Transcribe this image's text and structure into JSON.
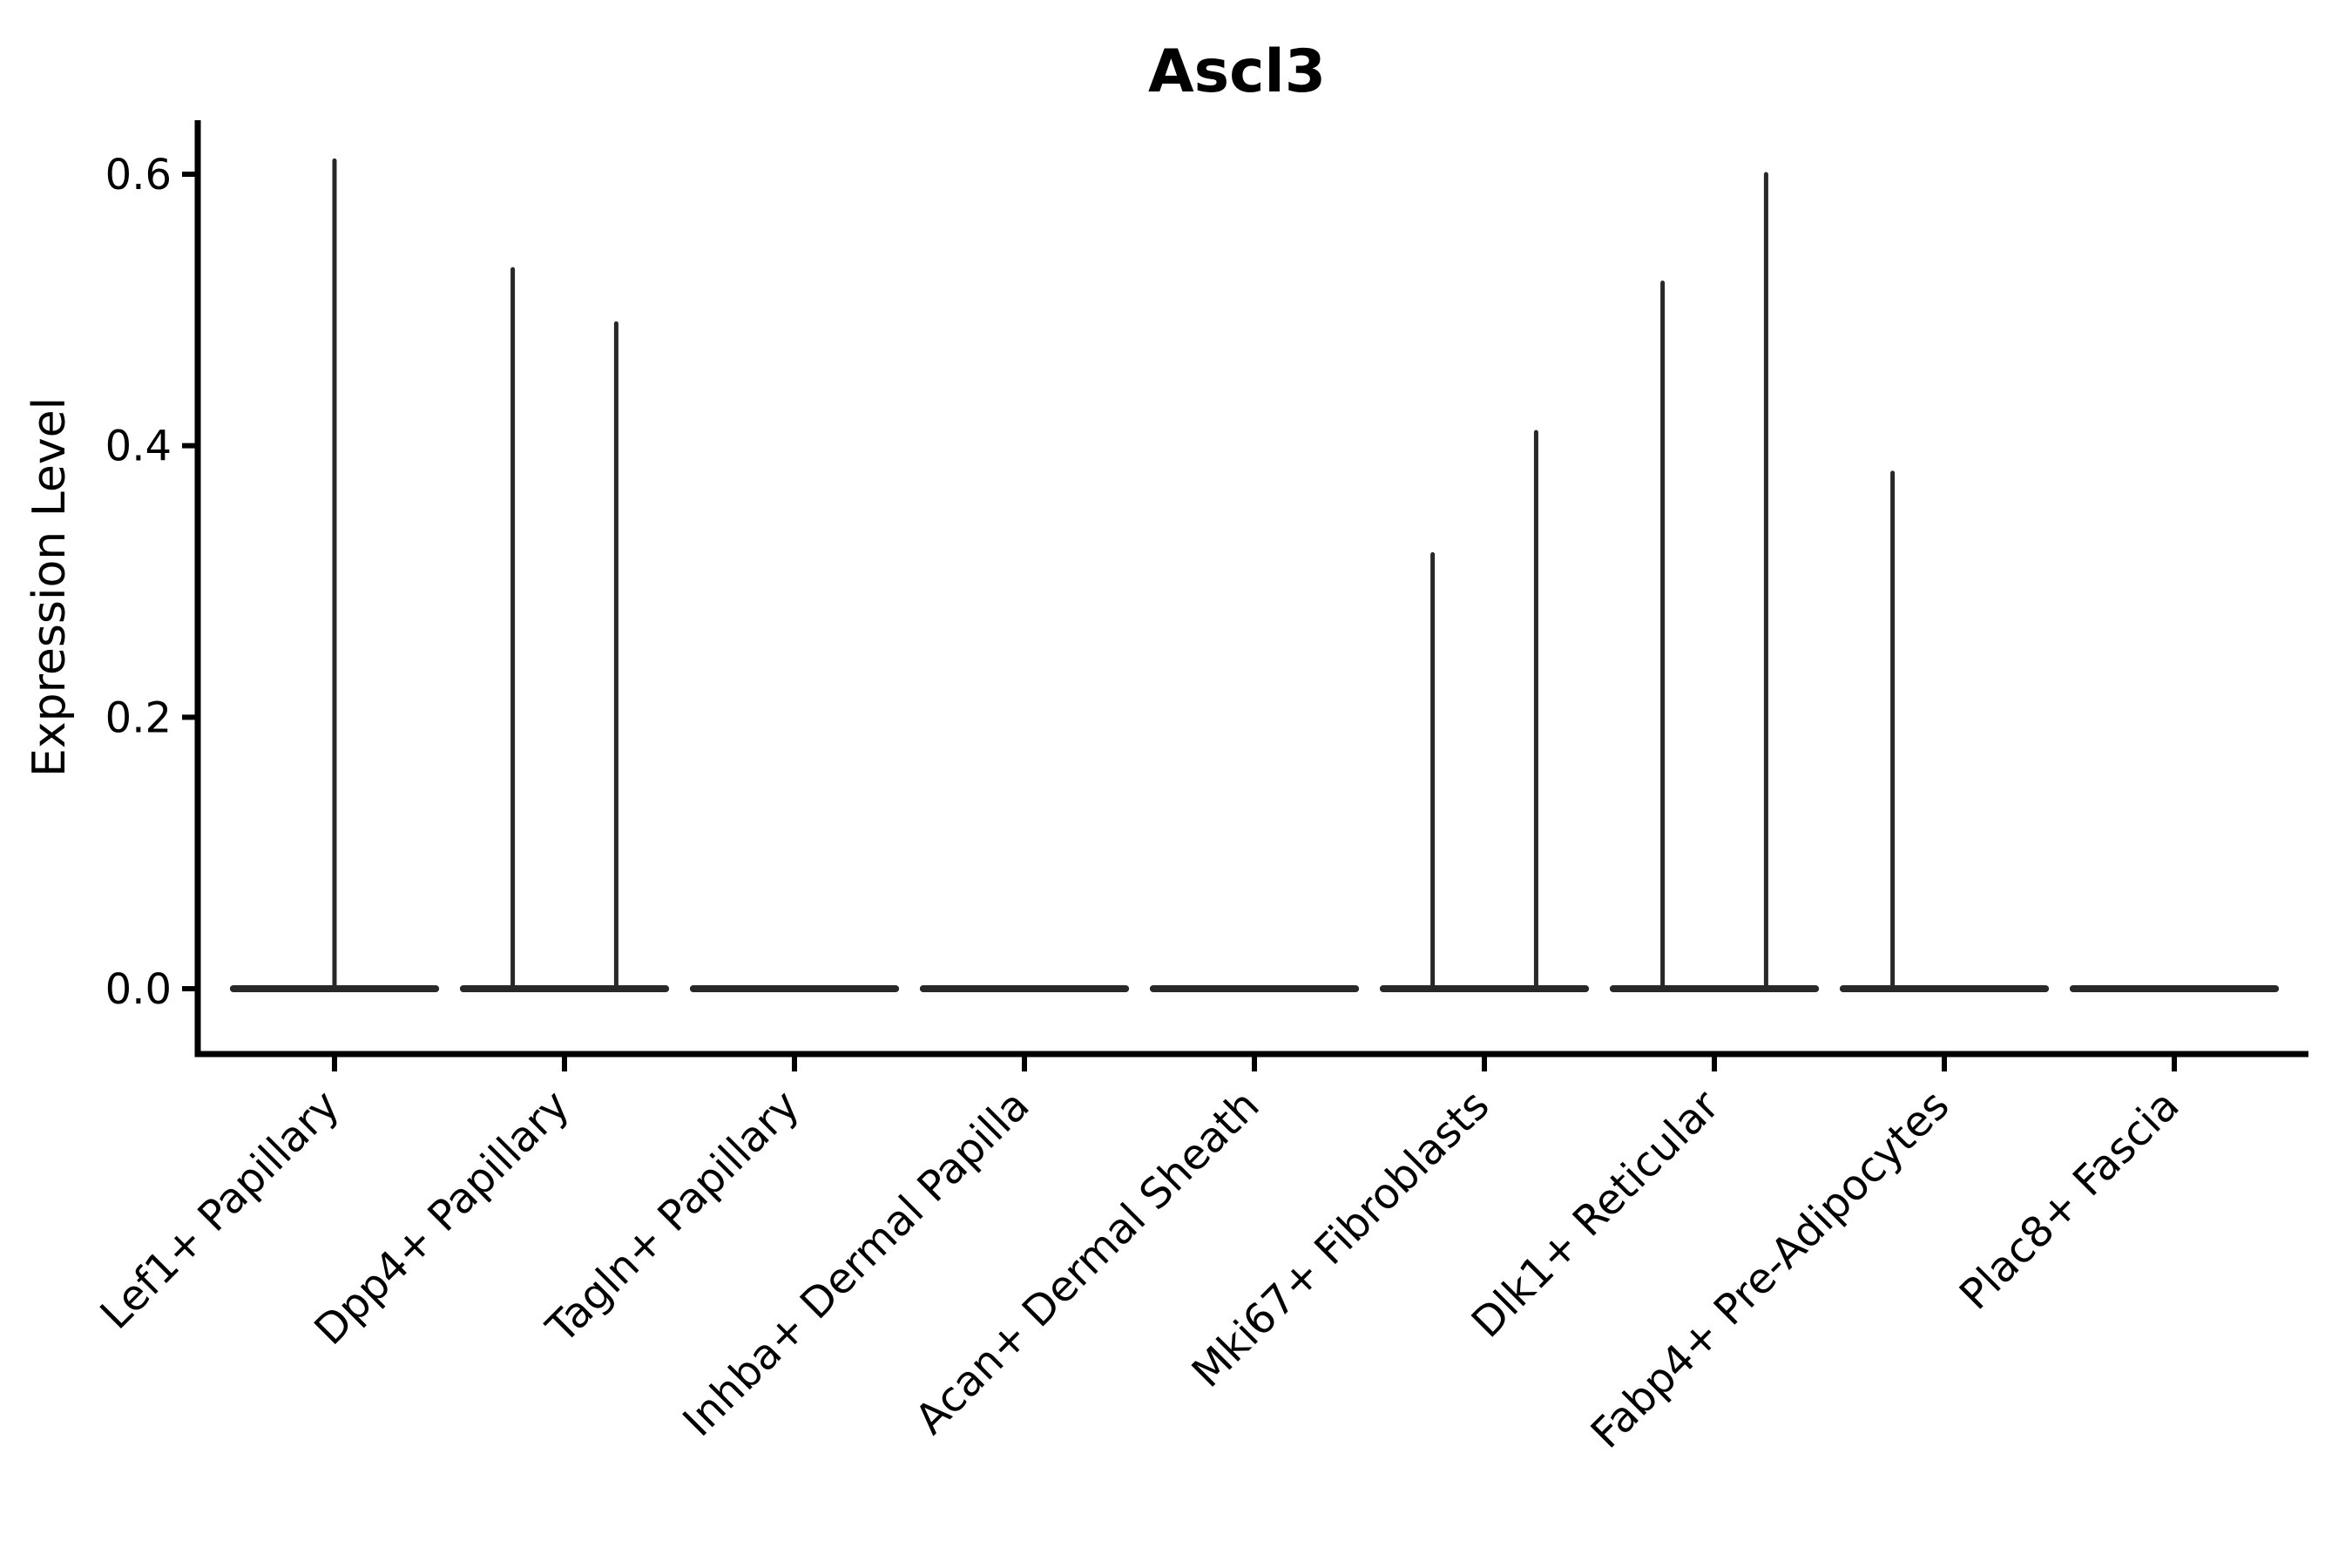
{
  "title": "Ascl3",
  "chart_data": {
    "type": "violin",
    "title": "Ascl3",
    "xlabel": "",
    "ylabel": "Expression Level",
    "ylim": [
      0,
      0.64
    ],
    "yticks": [
      0.0,
      0.2,
      0.4,
      0.6
    ],
    "ytick_labels": [
      "0.0",
      "0.2",
      "0.4",
      "0.6"
    ],
    "grid": false,
    "legend_position": "none",
    "tick_label_rotation": 45,
    "categories": [
      "Lef1+ Papillary",
      "Dpp4+ Papillary",
      "Tagln+ Papillary",
      "Inhba+ Dermal Papilla",
      "Acan+ Dermal Sheath",
      "Mki67+ Fibroblasts",
      "Dlk1+ Reticular",
      "Fabp4+ Pre-Adipocytes",
      "Plac8+ Fascia"
    ],
    "series": [
      {
        "name": "Lef1+ Papillary",
        "baseline_value": 0.0,
        "spikes": [
          {
            "offset_frac": 0.0,
            "value": 0.61
          }
        ]
      },
      {
        "name": "Dpp4+ Papillary",
        "baseline_value": 0.0,
        "spikes": [
          {
            "offset_frac": -0.225,
            "value": 0.53
          },
          {
            "offset_frac": 0.225,
            "value": 0.49
          }
        ]
      },
      {
        "name": "Tagln+ Papillary",
        "baseline_value": 0.0,
        "spikes": []
      },
      {
        "name": "Inhba+ Dermal Papilla",
        "baseline_value": 0.0,
        "spikes": []
      },
      {
        "name": "Acan+ Dermal Sheath",
        "baseline_value": 0.0,
        "spikes": []
      },
      {
        "name": "Mki67+ Fibroblasts",
        "baseline_value": 0.0,
        "spikes": [
          {
            "offset_frac": -0.225,
            "value": 0.32
          },
          {
            "offset_frac": 0.225,
            "value": 0.41
          }
        ]
      },
      {
        "name": "Dlk1+ Reticular",
        "baseline_value": 0.0,
        "spikes": [
          {
            "offset_frac": -0.225,
            "value": 0.52
          },
          {
            "offset_frac": 0.225,
            "value": 0.6
          }
        ]
      },
      {
        "name": "Fabp4+ Pre-Adipocytes",
        "baseline_value": 0.0,
        "spikes": [
          {
            "offset_frac": -0.225,
            "value": 0.38
          }
        ]
      },
      {
        "name": "Plac8+ Fascia",
        "baseline_value": 0.0,
        "spikes": []
      }
    ],
    "style": {
      "violin_color": "#282828",
      "spine_color": "#000000",
      "text_color": "#000000",
      "background": "#ffffff",
      "violin_width_frac": 0.91
    }
  }
}
